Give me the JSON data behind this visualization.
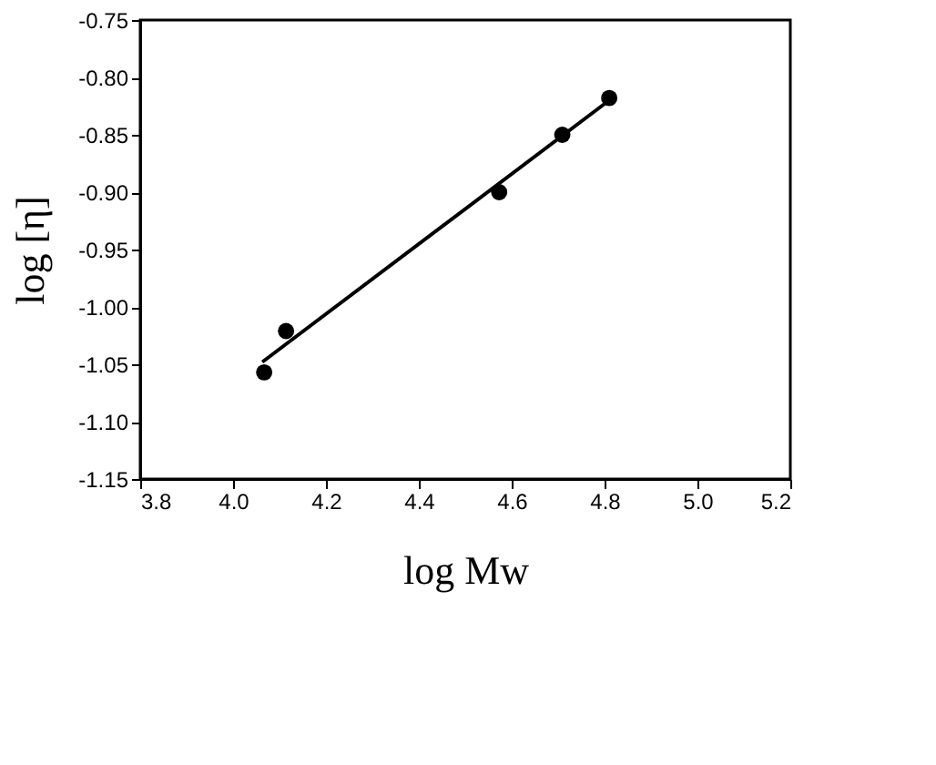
{
  "chart_data": {
    "type": "scatter",
    "xlabel": "log Mw",
    "ylabel": "log [η]",
    "series": [
      {
        "color": "#000000",
        "marker": "circle",
        "x": [
          4.067,
          4.114,
          4.573,
          4.709,
          4.81
        ],
        "values": [
          -1.057,
          -1.021,
          -0.9,
          -0.85,
          -0.818
        ]
      },
      {
        "type": "line",
        "marker": "none",
        "color": "#000000",
        "x": [
          4.063,
          4.8
        ],
        "values": [
          -1.048,
          -0.823
        ]
      }
    ],
    "xlim": [
      3.8,
      5.2
    ],
    "xticks": [
      3.8,
      {
        "value": 4.0,
        "label": "4.0"
      },
      4.2,
      4.4,
      4.6,
      4.8,
      {
        "value": 5.0,
        "label": "5.0"
      },
      5.2
    ],
    "ylim": [
      -1.15,
      -0.75
    ],
    "yticks": [
      -1.15,
      {
        "value": -1.1,
        "label": "-1.10"
      },
      -1.05,
      {
        "value": -1.0,
        "label": "-1.00"
      },
      -0.95,
      {
        "value": -0.9,
        "label": "-0.90"
      },
      -0.85,
      {
        "value": -0.8,
        "label": "-0.80"
      },
      -0.75
    ],
    "grid": false
  }
}
